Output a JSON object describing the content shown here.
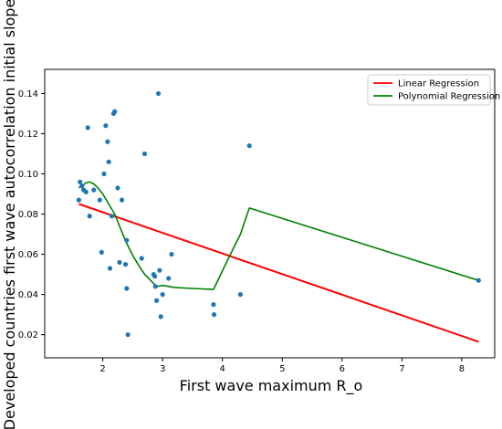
{
  "chart_data": {
    "type": "scatter",
    "title": "",
    "xlabel": "First wave maximum R_o",
    "ylabel": "Developed countries first wave autocorrelation initial slope",
    "xlim": [
      1.03,
      8.55
    ],
    "ylim": [
      0.0085,
      0.152
    ],
    "xticks": [
      2,
      3,
      4,
      5,
      6,
      7,
      8
    ],
    "yticks": [
      0.02,
      0.04,
      0.06,
      0.08,
      0.1,
      0.12,
      0.14
    ],
    "ytick_labels": [
      "0.02",
      "0.04",
      "0.06",
      "0.08",
      "0.10",
      "0.12",
      "0.14"
    ],
    "grid": false,
    "legend_position": "top-right",
    "colors": {
      "points": "#1f77b4",
      "linear": "#ff0000",
      "polynomial": "#008000",
      "axes": "#000000"
    },
    "points": {
      "x": [
        1.6,
        1.62,
        1.65,
        1.68,
        1.72,
        1.75,
        1.78,
        1.85,
        1.95,
        1.98,
        2.02,
        2.05,
        2.08,
        2.1,
        2.12,
        2.15,
        2.18,
        2.2,
        2.25,
        2.28,
        2.32,
        2.38,
        2.4,
        2.4,
        2.42,
        2.65,
        2.7,
        2.85,
        2.87,
        2.88,
        2.9,
        2.93,
        2.95,
        2.97,
        3.0,
        3.1,
        3.15,
        3.85,
        3.86,
        4.3,
        4.45,
        8.28
      ],
      "y": [
        0.087,
        0.096,
        0.094,
        0.092,
        0.091,
        0.123,
        0.079,
        0.092,
        0.087,
        0.061,
        0.1,
        0.124,
        0.116,
        0.106,
        0.053,
        0.079,
        0.13,
        0.131,
        0.093,
        0.056,
        0.087,
        0.055,
        0.043,
        0.067,
        0.02,
        0.058,
        0.11,
        0.05,
        0.049,
        0.044,
        0.037,
        0.14,
        0.052,
        0.029,
        0.04,
        0.048,
        0.06,
        0.035,
        0.03,
        0.04,
        0.114,
        0.047
      ]
    },
    "series": [
      {
        "name": "Linear Regression",
        "type": "line",
        "x": [
          1.6,
          8.28
        ],
        "y": [
          0.085,
          0.0165
        ]
      },
      {
        "name": "Polynomial Regression",
        "type": "line",
        "x": [
          1.6,
          1.65,
          1.72,
          1.78,
          1.85,
          1.92,
          2.0,
          2.1,
          2.2,
          2.3,
          2.4,
          2.5,
          2.6,
          2.7,
          2.8,
          2.9,
          3.0,
          3.1,
          3.2,
          3.5,
          3.85,
          4.1,
          4.3,
          4.45,
          8.28
        ],
        "y": [
          0.093,
          0.094,
          0.0955,
          0.096,
          0.095,
          0.093,
          0.09,
          0.085,
          0.08,
          0.0725,
          0.0655,
          0.0595,
          0.0545,
          0.05,
          0.047,
          0.044,
          0.0445,
          0.044,
          0.0435,
          0.043,
          0.0425,
          0.058,
          0.07,
          0.083,
          0.047
        ]
      }
    ]
  }
}
